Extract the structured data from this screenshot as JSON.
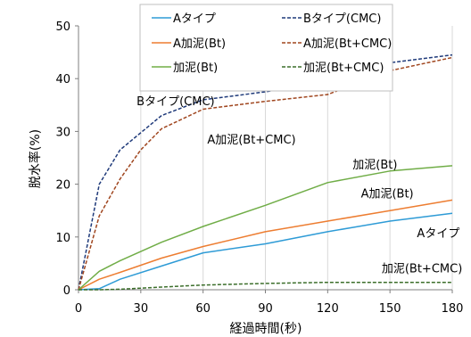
{
  "chart_data": {
    "type": "line",
    "xlabel": "経過時間(秒)",
    "ylabel": "脱水率(%)",
    "xlim": [
      0,
      180
    ],
    "ylim": [
      0,
      50
    ],
    "x_ticks": [
      0,
      30,
      60,
      90,
      120,
      150,
      180
    ],
    "y_ticks": [
      0,
      10,
      20,
      30,
      40,
      50
    ],
    "grid": "vertical",
    "legend_position": "top",
    "series": [
      {
        "name": "Aタイプ",
        "color": "#2e9bd6",
        "dash": "solid",
        "x": [
          0,
          10,
          20,
          40,
          60,
          90,
          120,
          150,
          180
        ],
        "y": [
          0,
          0.2,
          2,
          4.5,
          7,
          8.7,
          11,
          13,
          14.5
        ]
      },
      {
        "name": "Bタイプ(CMC)",
        "color": "#1f3a7a",
        "dash": "dash",
        "x": [
          0,
          10,
          20,
          40,
          60,
          90,
          120,
          150,
          180
        ],
        "y": [
          0,
          20,
          26.5,
          33,
          36,
          37.5,
          39.5,
          43,
          44.5
        ]
      },
      {
        "name": "A加泥(Bt)",
        "color": "#ed7d31",
        "dash": "solid",
        "x": [
          0,
          10,
          20,
          40,
          60,
          90,
          120,
          150,
          180
        ],
        "y": [
          0,
          2,
          3.3,
          6,
          8.2,
          11,
          13,
          15,
          17
        ]
      },
      {
        "name": "A加泥(Bt+CMC)",
        "color": "#a0461f",
        "dash": "dash",
        "x": [
          0,
          10,
          20,
          30,
          40,
          60,
          90,
          120,
          150,
          180
        ],
        "y": [
          0,
          14,
          21,
          26.5,
          30.5,
          34.2,
          35.7,
          37,
          41.5,
          44
        ]
      },
      {
        "name": "加泥(Bt)",
        "color": "#70ad47",
        "dash": "solid",
        "x": [
          0,
          10,
          20,
          40,
          60,
          90,
          120,
          150,
          180
        ],
        "y": [
          0,
          3.5,
          5.5,
          9,
          12,
          16,
          20.3,
          22.5,
          23.5
        ]
      },
      {
        "name": "加泥(Bt+CMC)",
        "color": "#3b6e2a",
        "dash": "dash",
        "x": [
          0,
          10,
          20,
          40,
          60,
          90,
          120,
          150,
          180
        ],
        "y": [
          0,
          0,
          0.1,
          0.5,
          0.9,
          1.2,
          1.4,
          1.4,
          1.4
        ]
      }
    ],
    "annotations": [
      {
        "text": "Bタイプ(CMC)",
        "x": 28,
        "y": 35
      },
      {
        "text": "A加泥(Bt+CMC)",
        "x": 62,
        "y": 27.7
      },
      {
        "text": "加泥(Bt)",
        "x": 132,
        "y": 23
      },
      {
        "text": "A加泥(Bt)",
        "x": 136,
        "y": 17.5
      },
      {
        "text": "Aタイプ",
        "x": 163,
        "y": 10
      },
      {
        "text": "加泥(Bt+CMC)",
        "x": 146,
        "y": 3.3
      }
    ]
  }
}
